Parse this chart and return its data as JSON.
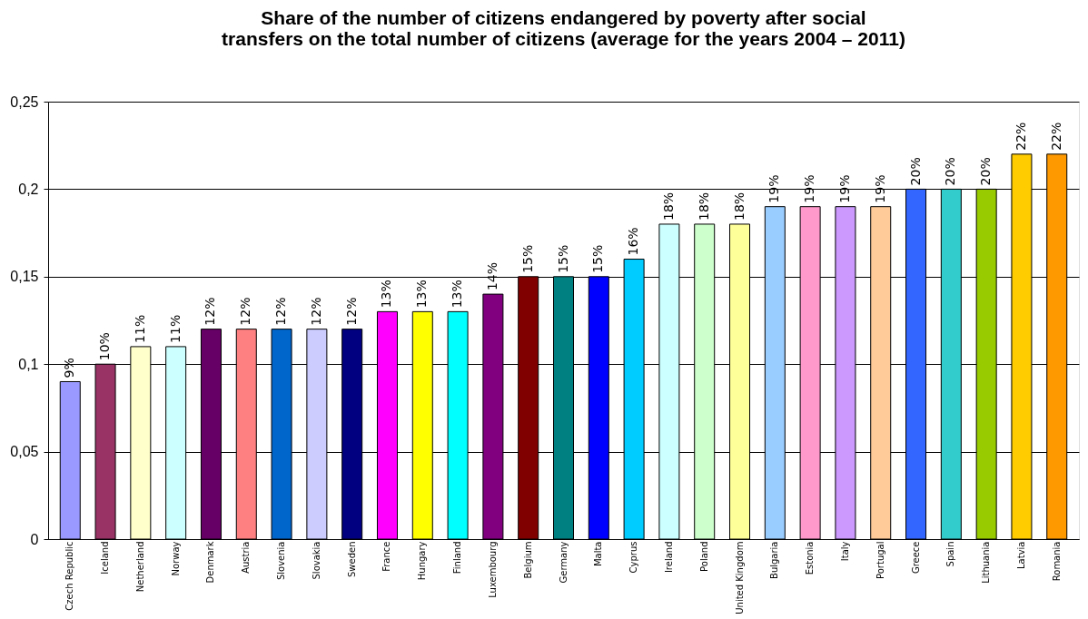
{
  "chart_data": {
    "type": "bar",
    "title": [
      "Share of the number of citizens endangered by poverty after social",
      "transfers on the total number of citizens (average for the years 2004 – 2011)"
    ],
    "categories": [
      "Czech Republic",
      "Iceland",
      "Netherland",
      "Norway",
      "Denmark",
      "Austria",
      "Slovenia",
      "Slovakia",
      "Sweden",
      "France",
      "Hungary",
      "Finland",
      "Luxembourg",
      "Belgium",
      "Germany",
      "Malta",
      "Cyprus",
      "Ireland",
      "Poland",
      "United Kingdom",
      "Bulgaria",
      "Estonia",
      "Italy",
      "Portugal",
      "Greece",
      "Spain",
      "Lithuania",
      "Latvia",
      "Romania"
    ],
    "values": [
      0.09,
      0.1,
      0.11,
      0.11,
      0.12,
      0.12,
      0.12,
      0.12,
      0.12,
      0.13,
      0.13,
      0.13,
      0.14,
      0.15,
      0.15,
      0.15,
      0.16,
      0.18,
      0.18,
      0.18,
      0.19,
      0.19,
      0.19,
      0.19,
      0.2,
      0.2,
      0.2,
      0.22,
      0.22
    ],
    "value_labels": [
      "9%",
      "10%",
      "11%",
      "11%",
      "12%",
      "12%",
      "12%",
      "12%",
      "12%",
      "13%",
      "13%",
      "13%",
      "14%",
      "15%",
      "15%",
      "15%",
      "16%",
      "18%",
      "18%",
      "18%",
      "19%",
      "19%",
      "19%",
      "19%",
      "20%",
      "20%",
      "20%",
      "22%",
      "22%"
    ],
    "colors": [
      "#9999ff",
      "#993366",
      "#ffffcc",
      "#ccffff",
      "#660066",
      "#ff8080",
      "#0066cc",
      "#ccccff",
      "#000080",
      "#ff00ff",
      "#ffff00",
      "#00ffff",
      "#800080",
      "#800000",
      "#008080",
      "#0000ff",
      "#00ccff",
      "#ccffff",
      "#ccffcc",
      "#ffff99",
      "#99ccff",
      "#ff99cc",
      "#cc99ff",
      "#ffcc99",
      "#3366ff",
      "#33cccc",
      "#99cc00",
      "#ffcc00",
      "#ff9900"
    ],
    "ylim": [
      0,
      0.25
    ],
    "yticks": [
      0,
      {
        "value": 0.05,
        "label": "0,05"
      },
      {
        "value": 0.1,
        "label": "0,1"
      },
      {
        "value": 0.15,
        "label": "0,15"
      },
      {
        "value": 0.2,
        "label": "0,2"
      },
      {
        "value": 0.25,
        "label": "0,25"
      }
    ],
    "grid": "y",
    "legend": false
  }
}
